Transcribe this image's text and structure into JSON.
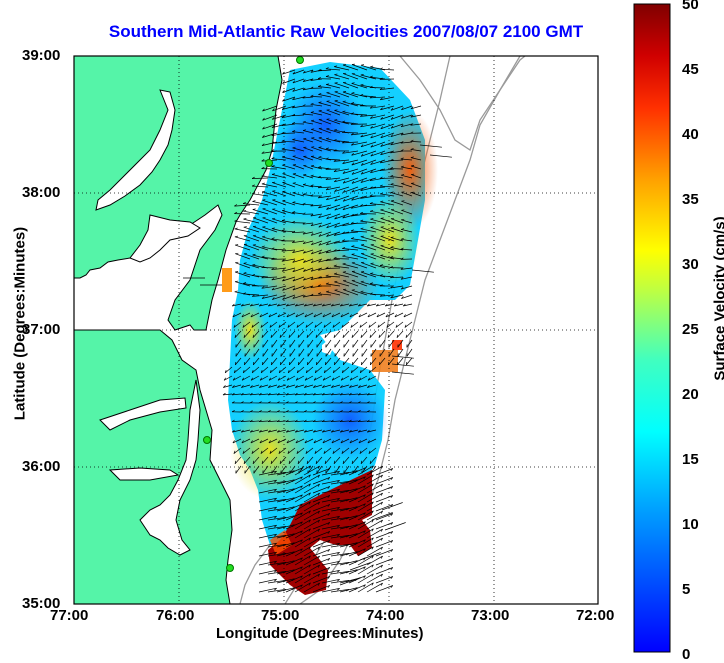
{
  "title": "Southern Mid-Atlantic Raw Velocities 2007/08/07 2100 GMT",
  "x_axis": {
    "label": "Longitude (Degrees:Minutes)",
    "ticks": [
      "77:00",
      "76:00",
      "75:00",
      "74:00",
      "73:00",
      "72:00"
    ]
  },
  "y_axis": {
    "label": "Latitude (Degrees:Minutes)",
    "ticks": [
      "39:00",
      "38:00",
      "37:00",
      "36:00",
      "35:00"
    ]
  },
  "colorbar": {
    "label": "Surface Velocity (cm/s)",
    "ticks": [
      "50",
      "45",
      "40",
      "35",
      "30",
      "25",
      "20",
      "15",
      "10",
      "5",
      "0"
    ],
    "min": 0,
    "max": 50,
    "colormap": "jet"
  },
  "colors": {
    "title": "#0000ff",
    "land": "#55f4a8",
    "water": "#ffffff",
    "coastline": "#000000",
    "bathymetry": "#9a9a9a",
    "grid": "#000000",
    "stations": "#22dd22"
  },
  "map": {
    "lon_range": [
      -77,
      -72
    ],
    "lat_range": [
      35,
      39
    ],
    "grid_lines": "dotted",
    "station_count": 4
  }
}
